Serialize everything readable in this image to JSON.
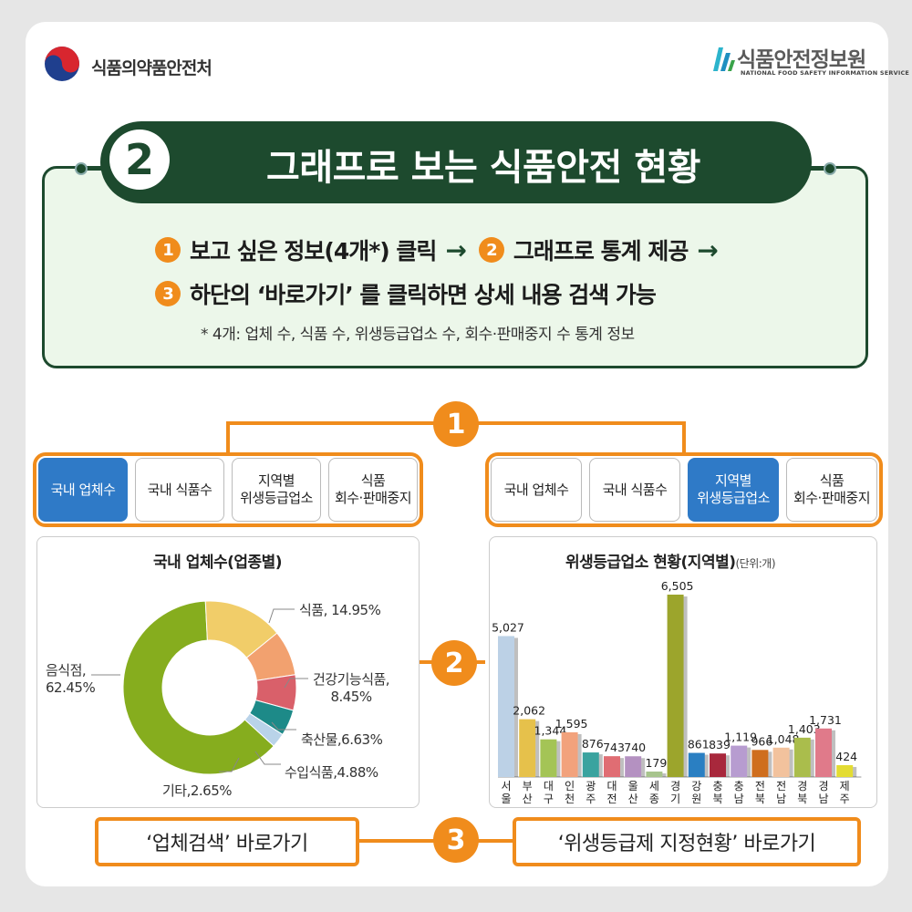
{
  "header": {
    "org_left": "식품의약품안전처",
    "org_right": "식품안전정보원",
    "org_right_sub": "NATIONAL FOOD SAFETY INFORMATION SERVICE"
  },
  "title": {
    "number": "2",
    "text": "그래프로 보는 식품안전 현황"
  },
  "steps": {
    "s1_num": "1",
    "s1_text": "보고 싶은 정보(4개*) 클릭",
    "s2_num": "2",
    "s2_text": "그래프로 통계 제공",
    "s3_num": "3",
    "s3_text": "하단의 ‘바로가기’ 를 클릭하면 상세 내용 검색 가능",
    "arrow": "→",
    "note": "* 4개: 업체 수, 식품 수, 위생등급업소 수, 회수·판매중지 수 통계 정보"
  },
  "markers": {
    "m1": "1",
    "m2": "2",
    "m3": "3"
  },
  "left_tabs": {
    "t1": "국내 업체수",
    "t2": "국내 식품수",
    "t3a": "지역별",
    "t3b": "위생등급업소",
    "t4a": "식품",
    "t4b": "회수·판매중지"
  },
  "right_tabs": {
    "t1": "국내 업체수",
    "t2": "국내 식품수",
    "t3a": "지역별",
    "t3b": "위생등급업소",
    "t4a": "식품",
    "t4b": "회수·판매중지"
  },
  "donut": {
    "title": "국내 업체수(업종별)",
    "labels": {
      "food": "식품, 14.95%",
      "health_a": "건강기능식품,",
      "health_b": "8.45%",
      "livestock": "축산물,6.63%",
      "import": "수입식품,4.88%",
      "other": "기타,2.65%",
      "restaurant_a": "음식점,",
      "restaurant_b": "62.45%"
    }
  },
  "bar": {
    "title": "위생등급업소 현황(지역별)",
    "unit": "(단위:개)"
  },
  "chart_data": [
    {
      "type": "pie",
      "title": "국내 업체수(업종별)",
      "categories": [
        "음식점",
        "식품",
        "건강기능식품",
        "축산물",
        "수입식품",
        "기타"
      ],
      "values": [
        62.45,
        14.95,
        8.45,
        6.63,
        4.88,
        2.65
      ],
      "colors": [
        "#86ad1e",
        "#f1cd69",
        "#f2a16f",
        "#d9606a",
        "#1d8a88",
        "#b9d3e9"
      ]
    },
    {
      "type": "bar",
      "title": "위생등급업소 현황(지역별)",
      "categories": [
        "서울",
        "부산",
        "대구",
        "인천",
        "광주",
        "대전",
        "울산",
        "세종",
        "경기",
        "강원",
        "충북",
        "충남",
        "전북",
        "전남",
        "경북",
        "경남",
        "제주"
      ],
      "values": [
        5027,
        2062,
        1344,
        1595,
        876,
        743,
        740,
        179,
        6505,
        861,
        839,
        1119,
        966,
        1048,
        1403,
        1731,
        424
      ],
      "value_labels": [
        "5,027",
        "2,062",
        "1,344",
        "1,595",
        "876",
        "743",
        "740",
        "179",
        "6,505",
        "861",
        "839",
        "1,119",
        "966",
        "1,048",
        "1,403",
        "1,731",
        "424"
      ],
      "colors": [
        "#bcd1e6",
        "#e6c14b",
        "#a4c456",
        "#f2a27c",
        "#3aa39f",
        "#e06d73",
        "#b491c1",
        "#a7c48d",
        "#9ca52c",
        "#2a7fc2",
        "#a8283c",
        "#b79cd0",
        "#cf6e1e",
        "#f2c29d",
        "#aabd4c",
        "#e07a8a",
        "#e3dc33"
      ],
      "ylim": [
        0,
        6505
      ]
    }
  ],
  "links": {
    "business_search": "‘업체검색’ 바로가기",
    "hygiene_status": "‘위생등급제 지정현황’ 바로가기"
  }
}
